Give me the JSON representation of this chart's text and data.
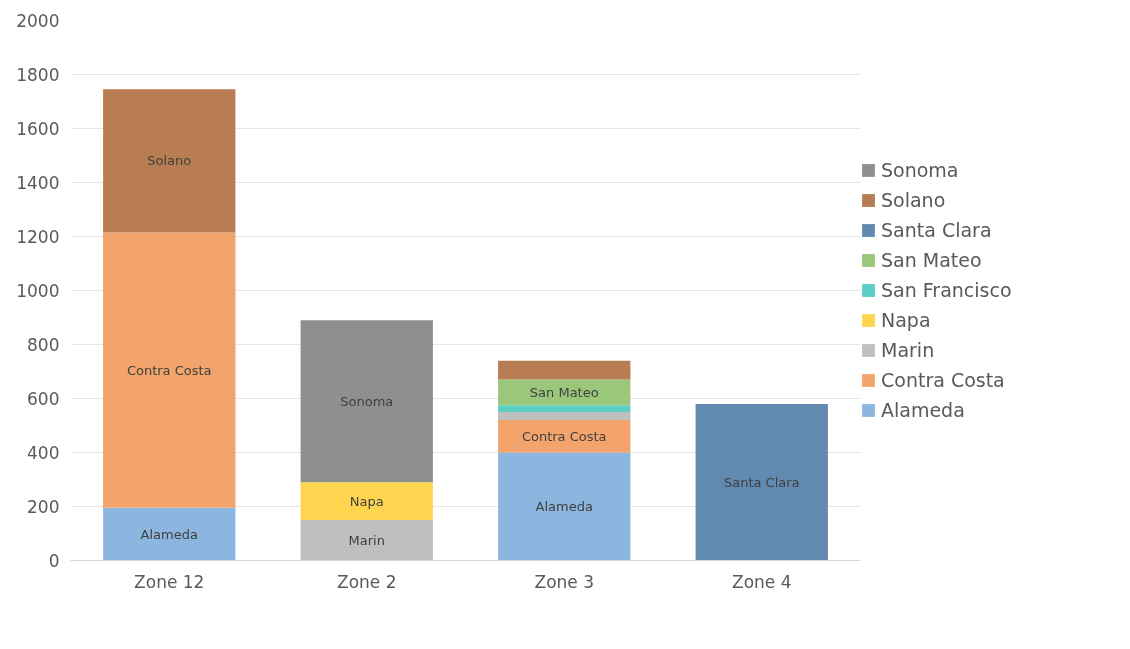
{
  "chart_data": {
    "type": "bar",
    "stacked": true,
    "categories": [
      "Zone 12",
      "Zone 2",
      "Zone 3",
      "Zone 4"
    ],
    "series": [
      {
        "name": "Alameda",
        "color": "#8cb6e0",
        "values": [
          195,
          null,
          400,
          null
        ],
        "value_labels": [
          "Alameda",
          null,
          "Alameda",
          null
        ]
      },
      {
        "name": "Contra Costa",
        "color": "#f2a46c",
        "values": [
          1020,
          null,
          120,
          null
        ],
        "value_labels": [
          "Contra Costa",
          null,
          "Contra Costa",
          null
        ]
      },
      {
        "name": "Marin",
        "color": "#bfbfbf",
        "values": [
          null,
          150,
          30,
          null
        ],
        "value_labels": [
          null,
          "Marin",
          null,
          null
        ]
      },
      {
        "name": "Napa",
        "color": "#ffd54f",
        "values": [
          null,
          140,
          null,
          null
        ],
        "value_labels": [
          null,
          "Napa",
          null,
          null
        ]
      },
      {
        "name": "San Francisco",
        "color": "#5ccfc4",
        "values": [
          null,
          null,
          25,
          null
        ],
        "value_labels": [
          null,
          null,
          null,
          null
        ]
      },
      {
        "name": "San Mateo",
        "color": "#9bc77a",
        "values": [
          null,
          null,
          95,
          null
        ],
        "value_labels": [
          null,
          null,
          "San Mateo",
          null
        ]
      },
      {
        "name": "Santa Clara",
        "color": "#6289b0",
        "values": [
          null,
          null,
          null,
          580
        ],
        "value_labels": [
          null,
          null,
          null,
          "Santa Clara"
        ]
      },
      {
        "name": "Solano",
        "color": "#b87d52",
        "values": [
          530,
          null,
          70,
          null
        ],
        "value_labels": [
          "Solano",
          null,
          null,
          null
        ]
      },
      {
        "name": "Sonoma",
        "color": "#8f8f8f",
        "values": [
          null,
          600,
          null,
          null
        ],
        "value_labels": [
          null,
          "Sonoma",
          null,
          null
        ]
      }
    ],
    "ylim": [
      0,
      2000
    ],
    "yticks": [
      0,
      200,
      400,
      600,
      800,
      1000,
      1200,
      1400,
      1600,
      1800,
      2000
    ],
    "grid": "y",
    "legend": "right"
  }
}
